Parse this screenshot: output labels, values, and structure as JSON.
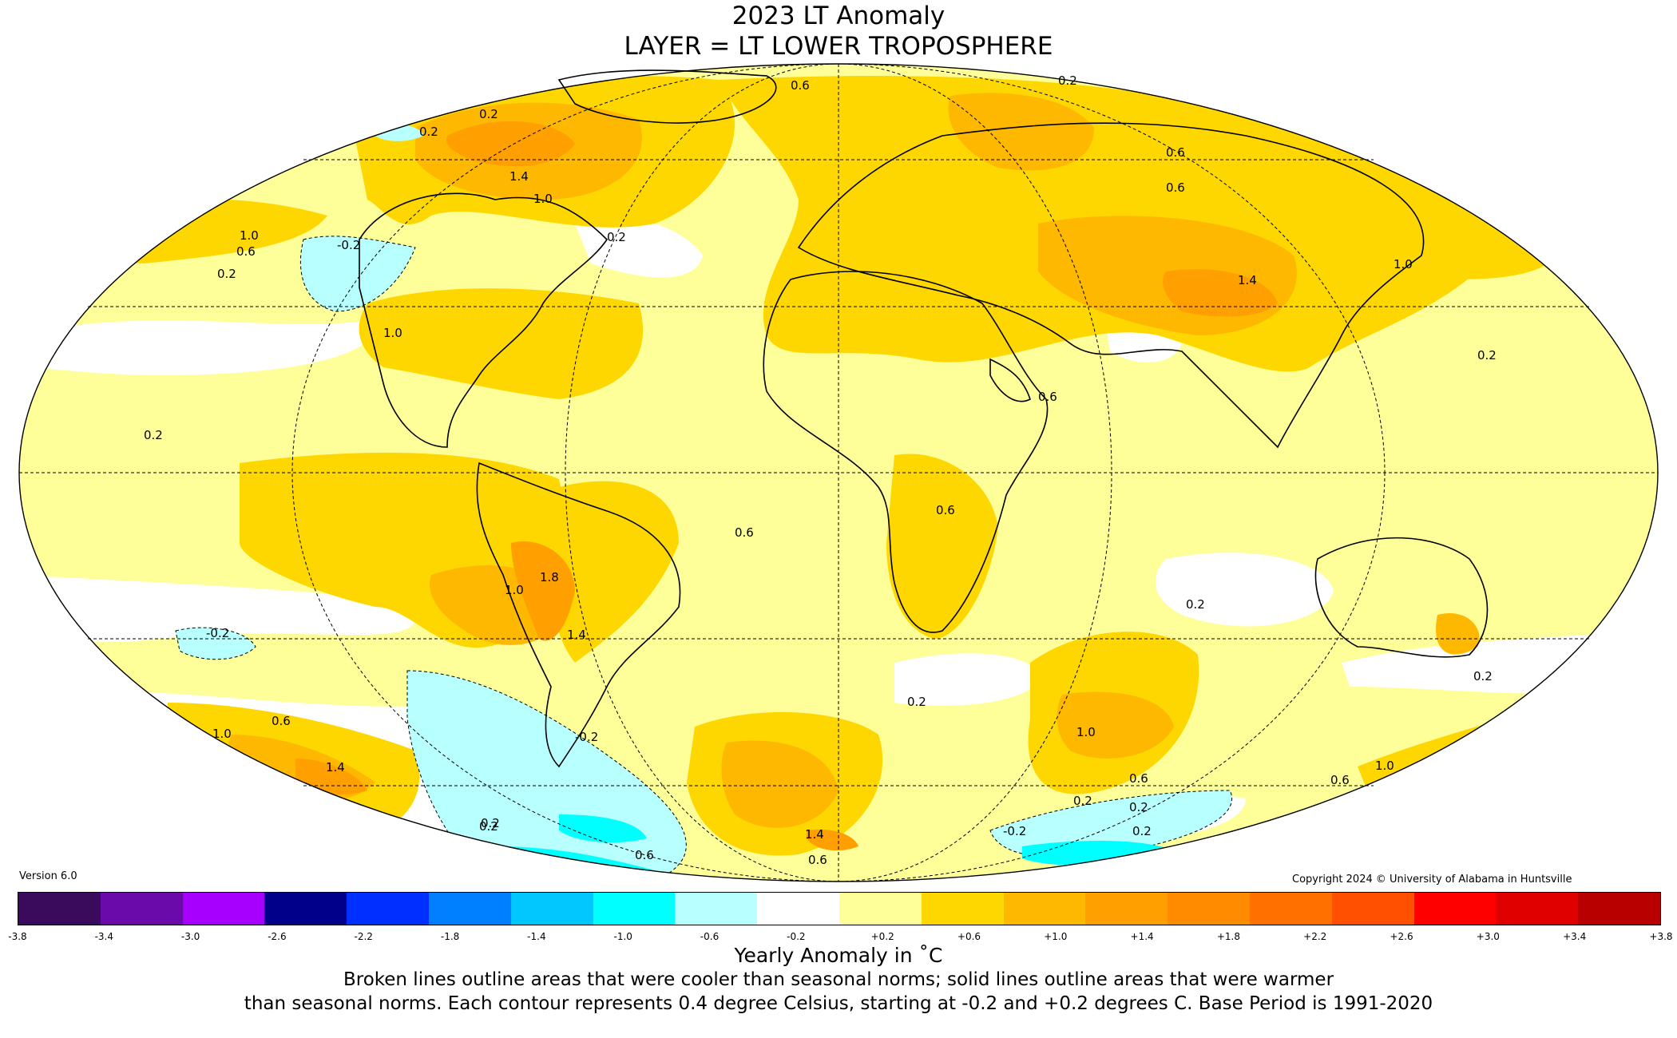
{
  "title": "2023 LT Anomaly",
  "subtitle": "LAYER = LT LOWER TROPOSPHERE",
  "version": "Version 6.0",
  "copyright": "Copyright 2024 © University of Alabama in Huntsville",
  "colorbar": {
    "ticks": [
      "-3.8",
      "-3.4",
      "-3.0",
      "-2.6",
      "-2.2",
      "-1.8",
      "-1.4",
      "-1.0",
      "-0.6",
      "-0.2",
      "+0.2",
      "+0.6",
      "+1.0",
      "+1.4",
      "+1.8",
      "+2.2",
      "+2.6",
      "+3.0",
      "+3.4",
      "+3.8"
    ],
    "colors": [
      "#3a0a5c",
      "#6a0aaa",
      "#a800ff",
      "#00008a",
      "#0030ff",
      "#0080ff",
      "#00c8ff",
      "#00ffff",
      "#b8ffff",
      "#ffffff",
      "#ffff99",
      "#ffd700",
      "#ffb800",
      "#ffa000",
      "#ff8c00",
      "#ff7000",
      "#ff5000",
      "#ff0000",
      "#e00000",
      "#b80000"
    ]
  },
  "unit_label": "Yearly Anomaly in ˚C",
  "note_line1": "Broken lines outline areas that were cooler than seasonal norms; solid lines outline areas that were warmer",
  "note_line2": "than seasonal norms. Each contour represents 0.4 degree Celsius, starting at -0.2 and +0.2 degrees C. Base Period is 1991-2020",
  "contour_labels": [
    "0.2",
    "0.6",
    "1.0",
    "1.4",
    "1.8",
    "-0.2"
  ],
  "colors": {
    "background_anomaly": "#ffff99",
    "warm1": "#ffd700",
    "warm2": "#ffb800",
    "warm3": "#ffa000",
    "cool1": "#b8ffff",
    "cool2": "#00ffff"
  }
}
